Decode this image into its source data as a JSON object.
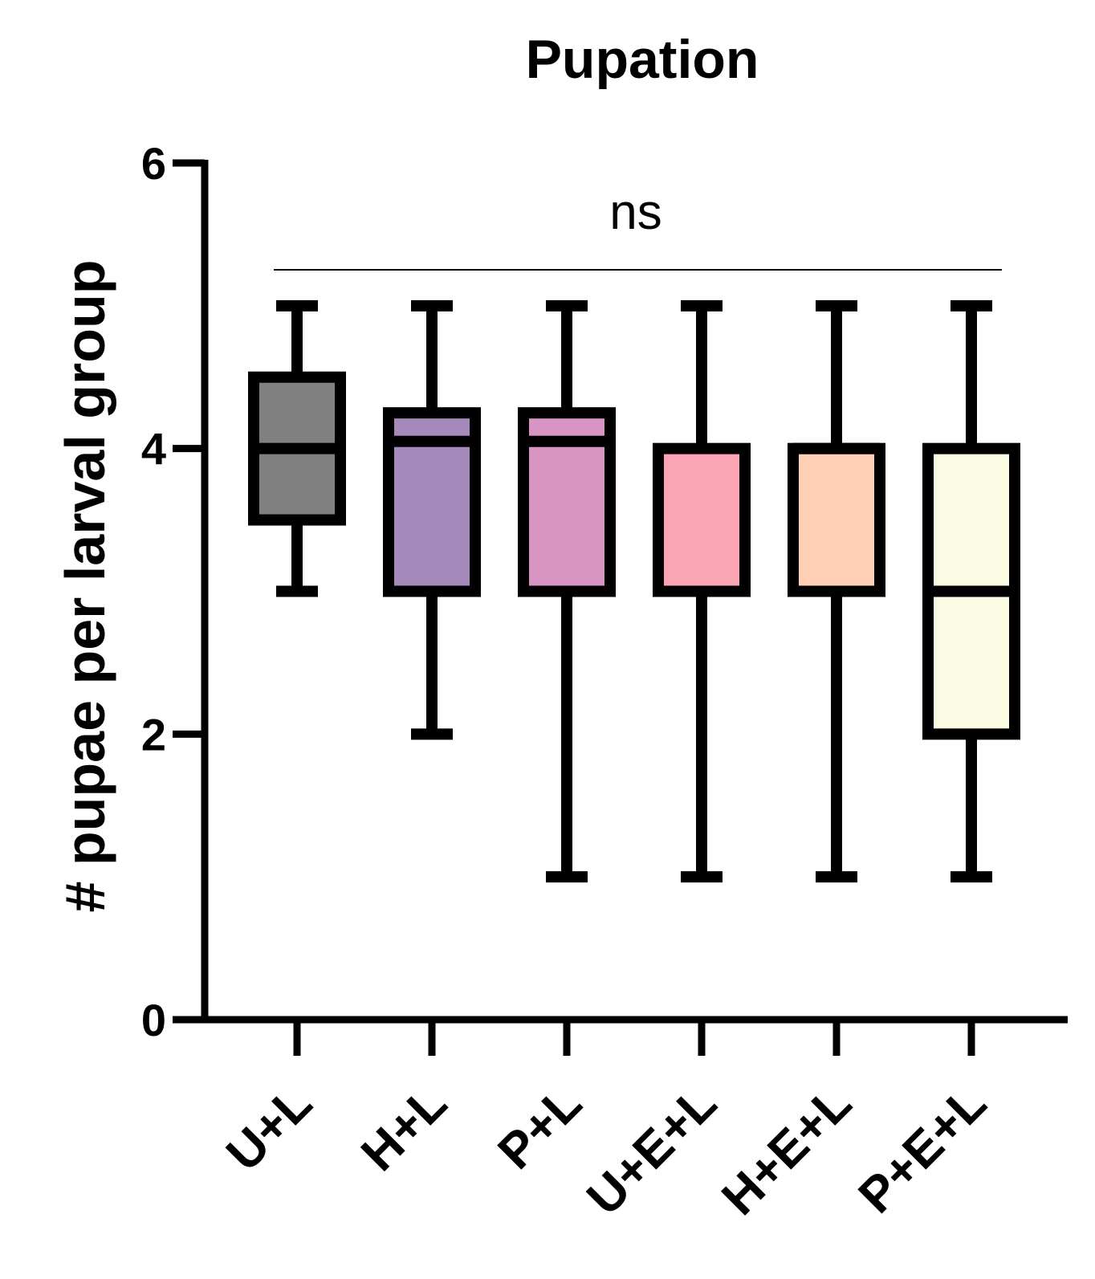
{
  "chart_data": {
    "type": "box",
    "title": "Pupation",
    "xlabel": "",
    "ylabel": "# pupae per larval group",
    "ylim": [
      0,
      6
    ],
    "yticks": [
      "0",
      "2",
      "4",
      "6"
    ],
    "annotation": "ns",
    "grid": false,
    "categories": [
      "U+L",
      "H+L",
      "P+L",
      "U+E+L",
      "H+E+L",
      "P+E+L"
    ],
    "boxes": [
      {
        "category": "U+L",
        "min": 3,
        "q1": 3.5,
        "median": 4,
        "q3": 4.5,
        "max": 5,
        "color": "#808080"
      },
      {
        "category": "H+L",
        "min": 2,
        "q1": 3,
        "median": 4.05,
        "q3": 4.25,
        "max": 5,
        "color": "#a689bb"
      },
      {
        "category": "P+L",
        "min": 1,
        "q1": 3,
        "median": 4.05,
        "q3": 4.25,
        "max": 5,
        "color": "#d895c4"
      },
      {
        "category": "U+E+L",
        "min": 1,
        "q1": 3,
        "median": 3,
        "q3": 4,
        "max": 5,
        "color": "#fba4b4"
      },
      {
        "category": "H+E+L",
        "min": 1,
        "q1": 3,
        "median": 4,
        "q3": 4,
        "max": 5,
        "color": "#ffd0b5"
      },
      {
        "category": "P+E+L",
        "min": 1,
        "q1": 2,
        "median": 3,
        "q3": 4,
        "max": 5,
        "color": "#fbfbe3"
      }
    ]
  }
}
